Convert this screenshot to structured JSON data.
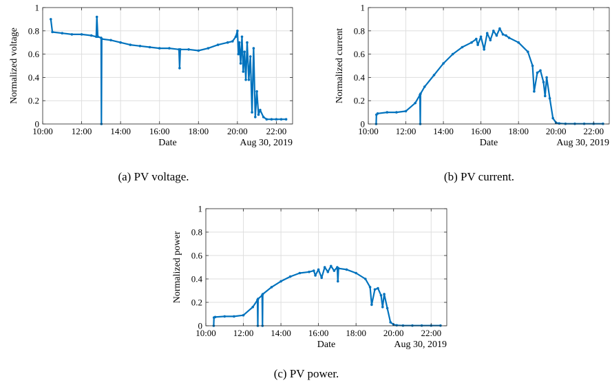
{
  "captions": {
    "a": "(a) PV voltage.",
    "b": "(b) PV current.",
    "c": "(c) PV power."
  },
  "colors": {
    "series": "#0072BD",
    "grid": "#dedede",
    "axis": "#262626"
  },
  "chart_data": [
    {
      "type": "line",
      "ylabel": "Normalized voltage",
      "xlabel": "Date",
      "date_label": "Aug 30, 2019",
      "xlim": [
        "10:00",
        "22:50"
      ],
      "ylim": [
        0,
        1
      ],
      "xticks": [
        "10:00",
        "12:00",
        "14:00",
        "16:00",
        "18:00",
        "20:00",
        "22:00"
      ],
      "yticks": [
        "0",
        "0.2",
        "0.4",
        "0.6",
        "0.8",
        "1"
      ],
      "grid": true,
      "x": [
        "10:25",
        "10:30",
        "11:00",
        "11:30",
        "12:00",
        "12:30",
        "12:45",
        "12:47",
        "12:50",
        "13:00",
        "13:01",
        "13:02",
        "13:30",
        "14:00",
        "14:30",
        "15:00",
        "15:30",
        "16:00",
        "16:30",
        "17:00",
        "17:02",
        "17:04",
        "17:30",
        "18:00",
        "18:30",
        "19:00",
        "19:30",
        "19:45",
        "19:55",
        "20:00",
        "20:03",
        "20:06",
        "20:10",
        "20:14",
        "20:18",
        "20:22",
        "20:26",
        "20:30",
        "20:35",
        "20:40",
        "20:45",
        "20:50",
        "20:55",
        "21:00",
        "21:05",
        "21:10",
        "21:20",
        "21:30",
        "21:45",
        "22:00",
        "22:15",
        "22:30"
      ],
      "y": [
        0.9,
        0.79,
        0.78,
        0.77,
        0.77,
        0.76,
        0.75,
        0.92,
        0.75,
        0.74,
        0.0,
        0.73,
        0.72,
        0.7,
        0.68,
        0.67,
        0.66,
        0.65,
        0.65,
        0.64,
        0.48,
        0.64,
        0.64,
        0.63,
        0.65,
        0.68,
        0.7,
        0.71,
        0.75,
        0.8,
        0.6,
        0.7,
        0.52,
        0.75,
        0.45,
        0.62,
        0.38,
        0.7,
        0.38,
        0.58,
        0.1,
        0.65,
        0.06,
        0.28,
        0.08,
        0.12,
        0.06,
        0.04,
        0.04,
        0.04,
        0.04,
        0.04
      ]
    },
    {
      "type": "line",
      "ylabel": "Normalized current",
      "xlabel": "Date",
      "date_label": "Aug 30, 2019",
      "xlim": [
        "10:00",
        "22:50"
      ],
      "ylim": [
        0,
        1
      ],
      "xticks": [
        "10:00",
        "12:00",
        "14:00",
        "16:00",
        "18:00",
        "20:00",
        "22:00"
      ],
      "yticks": [
        "0",
        "0.2",
        "0.4",
        "0.6",
        "0.8",
        "1"
      ],
      "grid": true,
      "x": [
        "10:25",
        "10:26",
        "10:30",
        "11:00",
        "11:30",
        "12:00",
        "12:30",
        "12:45",
        "12:46",
        "12:47",
        "13:00",
        "13:30",
        "14:00",
        "14:30",
        "15:00",
        "15:30",
        "15:45",
        "15:50",
        "16:00",
        "16:10",
        "16:20",
        "16:30",
        "16:40",
        "16:50",
        "17:00",
        "17:10",
        "17:20",
        "17:30",
        "18:00",
        "18:30",
        "18:45",
        "18:50",
        "19:00",
        "19:10",
        "19:20",
        "19:25",
        "19:30",
        "19:40",
        "19:50",
        "20:00",
        "20:10",
        "20:30",
        "21:00",
        "21:30",
        "22:00",
        "22:30"
      ],
      "y": [
        0.0,
        0.08,
        0.09,
        0.1,
        0.1,
        0.11,
        0.18,
        0.25,
        0.0,
        0.26,
        0.32,
        0.42,
        0.52,
        0.6,
        0.66,
        0.7,
        0.73,
        0.68,
        0.75,
        0.64,
        0.78,
        0.72,
        0.8,
        0.76,
        0.82,
        0.77,
        0.76,
        0.74,
        0.7,
        0.62,
        0.5,
        0.28,
        0.44,
        0.46,
        0.36,
        0.24,
        0.4,
        0.22,
        0.05,
        0.01,
        0.005,
        0.002,
        0.002,
        0.002,
        0.002,
        0.002
      ]
    },
    {
      "type": "line",
      "ylabel": "Normalized power",
      "xlabel": "Date",
      "date_label": "Aug 30, 2019",
      "xlim": [
        "10:00",
        "22:50"
      ],
      "ylim": [
        0,
        1
      ],
      "xticks": [
        "10:00",
        "12:00",
        "14:00",
        "16:00",
        "18:00",
        "20:00",
        "22:00"
      ],
      "yticks": [
        "0",
        "0.2",
        "0.4",
        "0.6",
        "0.8",
        "1"
      ],
      "grid": true,
      "x": [
        "10:25",
        "10:26",
        "10:30",
        "11:00",
        "11:30",
        "12:00",
        "12:30",
        "12:45",
        "12:46",
        "12:47",
        "13:00",
        "13:01",
        "13:02",
        "13:30",
        "14:00",
        "14:30",
        "15:00",
        "15:30",
        "15:45",
        "15:50",
        "16:00",
        "16:10",
        "16:20",
        "16:30",
        "16:40",
        "16:50",
        "17:00",
        "17:02",
        "17:04",
        "17:30",
        "18:00",
        "18:30",
        "18:45",
        "18:50",
        "19:00",
        "19:10",
        "19:20",
        "19:25",
        "19:30",
        "19:40",
        "19:50",
        "20:00",
        "20:10",
        "20:30",
        "21:00",
        "21:30",
        "22:00",
        "22:30"
      ],
      "y": [
        0.0,
        0.07,
        0.075,
        0.08,
        0.08,
        0.09,
        0.16,
        0.22,
        0.0,
        0.23,
        0.26,
        0.0,
        0.27,
        0.33,
        0.38,
        0.42,
        0.45,
        0.46,
        0.47,
        0.43,
        0.48,
        0.41,
        0.5,
        0.46,
        0.51,
        0.47,
        0.5,
        0.38,
        0.49,
        0.48,
        0.45,
        0.4,
        0.33,
        0.18,
        0.31,
        0.32,
        0.26,
        0.16,
        0.27,
        0.15,
        0.03,
        0.01,
        0.004,
        0.002,
        0.002,
        0.002,
        0.002,
        0.002
      ]
    }
  ]
}
